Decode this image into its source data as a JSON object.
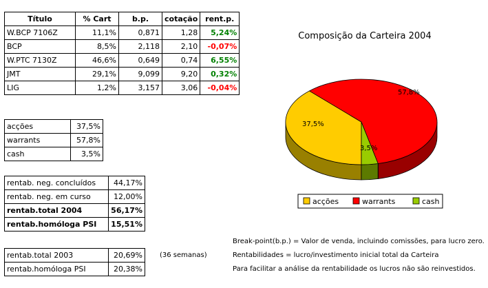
{
  "main_table": {
    "headers": [
      "Título",
      "% Cart",
      "b.p.",
      "cotação",
      "rent.p."
    ],
    "rows": [
      {
        "titulo": "W.BCP 7106Z",
        "cart": "11,1%",
        "bp": "0,871",
        "cotacao": "1,28",
        "rent": "5,24%",
        "sign": "pos"
      },
      {
        "titulo": "BCP",
        "cart": "8,5%",
        "bp": "2,118",
        "cotacao": "2,10",
        "rent": "-0,07%",
        "sign": "neg"
      },
      {
        "titulo": "W.PTC 7130Z",
        "cart": "46,6%",
        "bp": "0,649",
        "cotacao": "0,74",
        "rent": "6,55%",
        "sign": "pos"
      },
      {
        "titulo": "JMT",
        "cart": "29,1%",
        "bp": "9,099",
        "cotacao": "9,20",
        "rent": "0,32%",
        "sign": "pos"
      },
      {
        "titulo": "LIG",
        "cart": "1,2%",
        "bp": "3,157",
        "cotacao": "3,06",
        "rent": "-0,04%",
        "sign": "neg"
      }
    ]
  },
  "composition_table": [
    {
      "label": "acções",
      "value": "37,5%"
    },
    {
      "label": "warrants",
      "value": "57,8%"
    },
    {
      "label": "cash",
      "value": "3,5%"
    }
  ],
  "rent_table": [
    {
      "label": "rentab. neg. concluídos",
      "value": "44,17%",
      "bold": false
    },
    {
      "label": "rentab. neg. em curso",
      "value": "12,00%",
      "bold": false
    },
    {
      "label": "rentab.total 2004",
      "value": "56,17%",
      "bold": true
    },
    {
      "label": "rentab.homóloga PSI",
      "value": "15,51%",
      "bold": true
    }
  ],
  "prev_table": [
    {
      "label": "rentab.total 2003",
      "value": "20,69%"
    },
    {
      "label": "rentab.homóloga PSI",
      "value": "20,38%"
    }
  ],
  "notes": {
    "weeks": "(36 semanas)",
    "breakpoint": "Break-point(b.p.) = Valor de venda, incluindo comissões, para lucro zero.",
    "rentabilidades": "Rentabilidades = lucro/investimento inicial total da Carteira",
    "reinvest": "Para facilitar a análise da rentabilidade os lucros não são reinvestidos."
  },
  "chart_data": {
    "type": "pie",
    "title": "Composição da Carteira 2004",
    "style": "3d",
    "legend_position": "bottom",
    "slices": [
      {
        "name": "acções",
        "value": 37.5,
        "label": "37,5%",
        "color": "#ffcc00",
        "side_color": "#998000"
      },
      {
        "name": "warrants",
        "value": 57.8,
        "label": "57,8%",
        "color": "#ff0000",
        "side_color": "#990000"
      },
      {
        "name": "cash",
        "value": 3.5,
        "label": "3,5%",
        "color": "#99cc00",
        "side_color": "#5c7a00"
      }
    ]
  }
}
